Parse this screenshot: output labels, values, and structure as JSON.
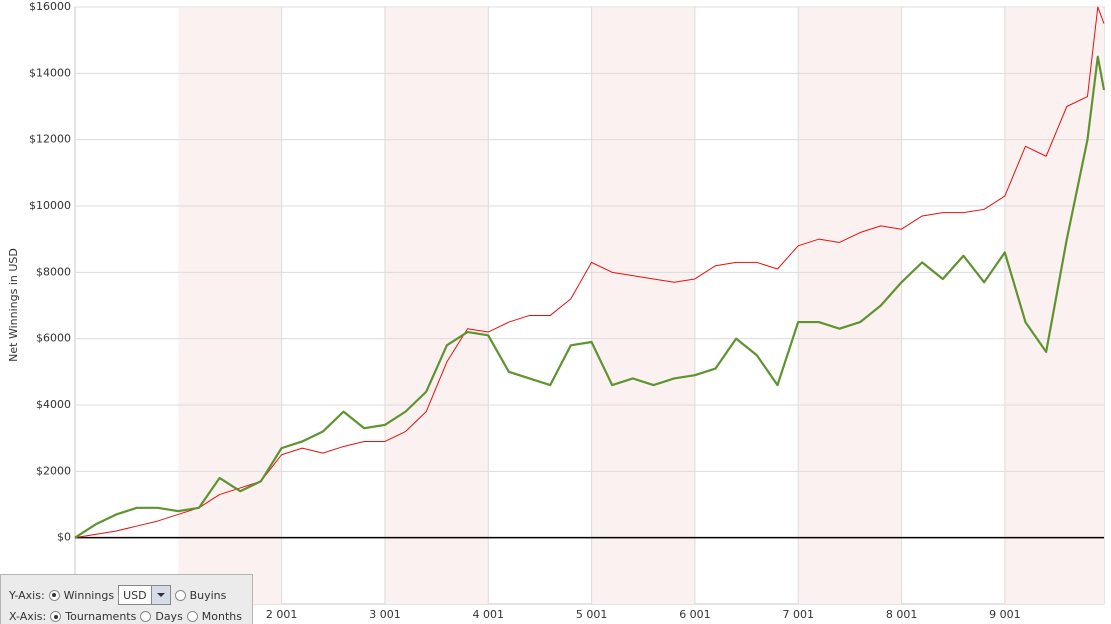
{
  "chart_data": {
    "type": "line",
    "y_label": "Net Winnings in USD",
    "x": [
      1,
      200,
      400,
      600,
      800,
      1000,
      1200,
      1400,
      1600,
      1800,
      2000,
      2200,
      2400,
      2600,
      2800,
      3000,
      3200,
      3400,
      3600,
      3800,
      4000,
      4200,
      4400,
      4600,
      4800,
      5000,
      5200,
      5400,
      5600,
      5800,
      6000,
      6200,
      6400,
      6600,
      6800,
      7000,
      7200,
      7400,
      7600,
      7800,
      8000,
      8200,
      8400,
      8600,
      8800,
      9000,
      9200,
      9400,
      9600,
      9800,
      9900,
      9960
    ],
    "series": [
      {
        "color": "#e81010",
        "width": 1,
        "values": [
          0,
          100,
          200,
          350,
          500,
          700,
          900,
          1300,
          1500,
          1700,
          2500,
          2700,
          2550,
          2750,
          2900,
          2900,
          3200,
          3800,
          5300,
          6300,
          6200,
          6500,
          6700,
          6700,
          7200,
          8300,
          8000,
          7900,
          7800,
          7700,
          7800,
          8200,
          8300,
          8300,
          8100,
          8800,
          9000,
          8900,
          9200,
          9400,
          9300,
          9700,
          9800,
          9800,
          9900,
          10300,
          11800,
          11500,
          13000,
          13300,
          16000,
          15500
        ]
      },
      {
        "color": "#5e9430",
        "width": 2.2,
        "values": [
          0,
          400,
          700,
          900,
          900,
          800,
          900,
          1800,
          1400,
          1700,
          2700,
          2900,
          3200,
          3800,
          3300,
          3400,
          3800,
          4400,
          5800,
          6200,
          6100,
          5000,
          4800,
          4600,
          5800,
          5900,
          4600,
          4800,
          4600,
          4800,
          4900,
          5100,
          6000,
          5500,
          4600,
          6500,
          6500,
          6300,
          6500,
          7000,
          7700,
          8300,
          7800,
          8500,
          7700,
          8600,
          6500,
          5600,
          9000,
          12000,
          14500,
          13500
        ]
      }
    ],
    "xlim": [
      1,
      9960
    ],
    "ylim": [
      -2000,
      16000
    ],
    "xticks": [
      {
        "value": 2001,
        "label": "2 001"
      },
      {
        "value": 3001,
        "label": "3 001"
      },
      {
        "value": 4001,
        "label": "4 001"
      },
      {
        "value": 5001,
        "label": "5 001"
      },
      {
        "value": 6001,
        "label": "6 001"
      },
      {
        "value": 7001,
        "label": "7 001"
      },
      {
        "value": 8001,
        "label": "8 001"
      },
      {
        "value": 9001,
        "label": "9 001"
      }
    ],
    "yticks": [
      {
        "value": 0,
        "label": "$0"
      },
      {
        "value": 2000,
        "label": "$2000"
      },
      {
        "value": 4000,
        "label": "$4000"
      },
      {
        "value": 6000,
        "label": "$6000"
      },
      {
        "value": 8000,
        "label": "$8000"
      },
      {
        "value": 10000,
        "label": "$10000"
      },
      {
        "value": 12000,
        "label": "$12000"
      },
      {
        "value": 14000,
        "label": "$14000"
      },
      {
        "value": 16000,
        "label": "$16000"
      }
    ],
    "grid": true
  },
  "controls": {
    "y_axis_label": "Y-Axis:",
    "y_options": [
      "Winnings",
      "Buyins"
    ],
    "currency": "USD",
    "x_axis_label": "X-Axis:",
    "x_options": [
      "Tournaments",
      "Days",
      "Months"
    ]
  }
}
